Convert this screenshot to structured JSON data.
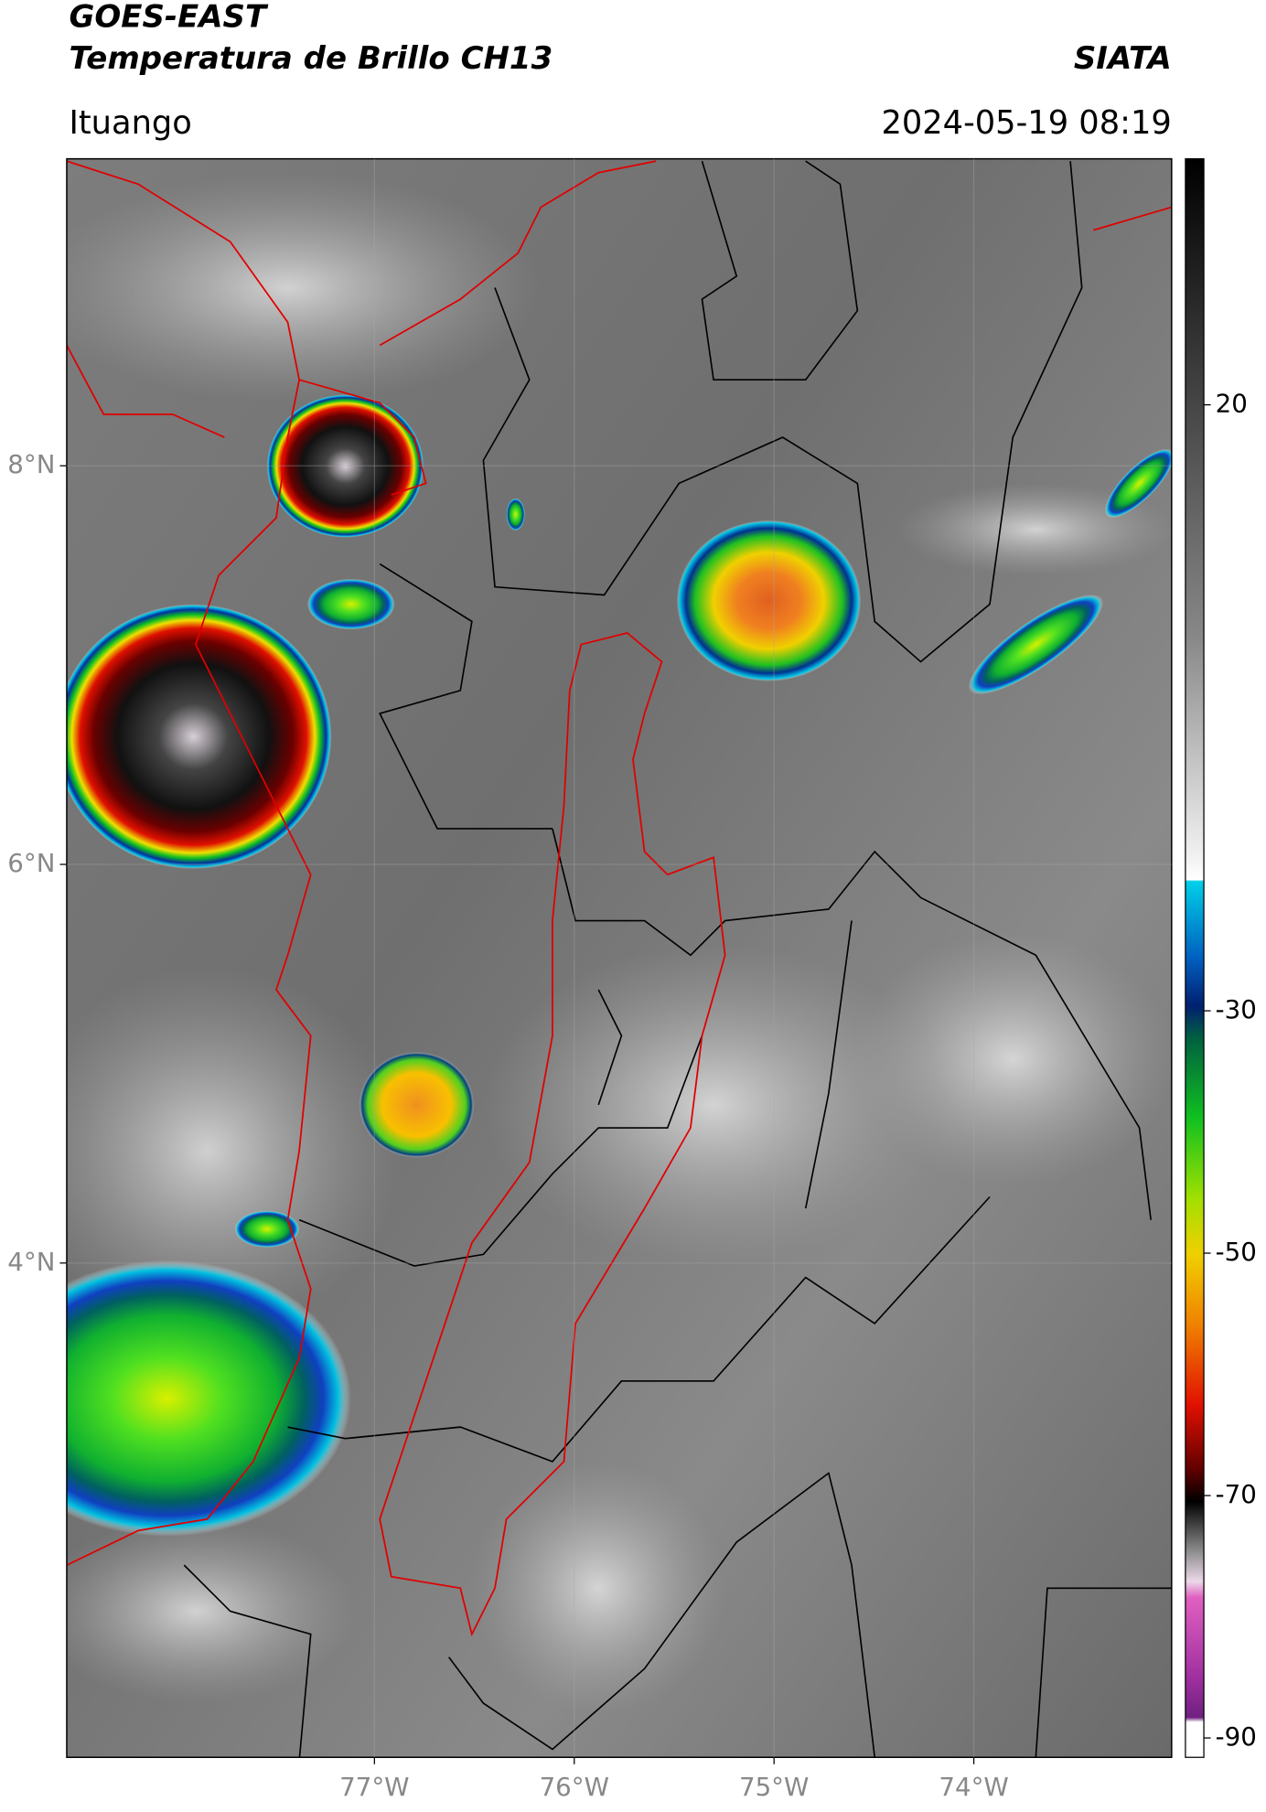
{
  "title_line1": "GOES-EAST",
  "title_line2": "Temperatura de Brillo CH13",
  "source": "SIATA",
  "region": "Ituango",
  "datetime": "2024-05-19 08:19",
  "map": {
    "xlim": [
      -78.54,
      -73.01
    ],
    "ylim": [
      1.52,
      9.54
    ],
    "xticks": [
      {
        "value": -77,
        "label": "77°W"
      },
      {
        "value": -76,
        "label": "76°W"
      },
      {
        "value": -75,
        "label": "75°W"
      },
      {
        "value": -74,
        "label": "74°W"
      }
    ],
    "yticks": [
      {
        "value": 8,
        "label": "8°N"
      },
      {
        "value": 6,
        "label": "6°N"
      },
      {
        "value": 4,
        "label": "4°N"
      }
    ],
    "grid": true
  },
  "colorbar": {
    "lim": [
      -91.6,
      40.3
    ],
    "ticks": [
      20,
      -30,
      -50,
      -70,
      -90
    ]
  }
}
